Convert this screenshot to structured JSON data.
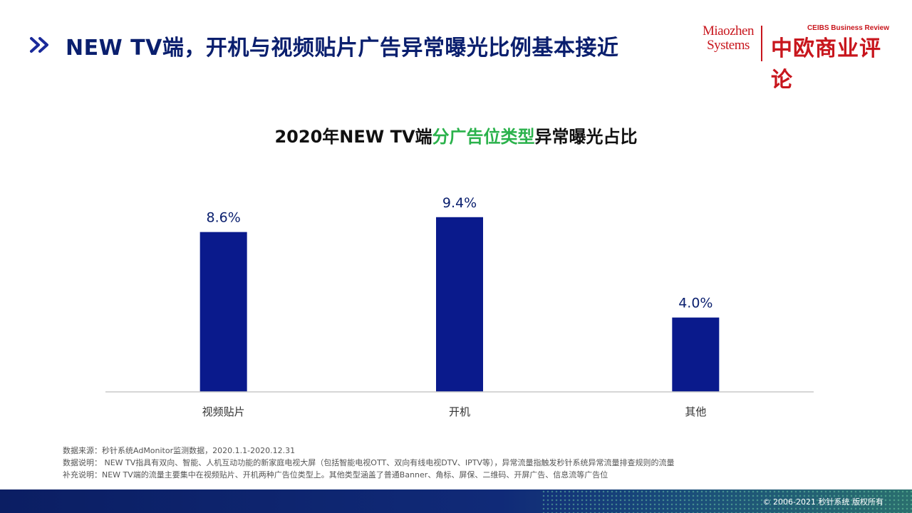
{
  "header": {
    "title": "NEW TV端，开机与视频贴片广告异常曝光比例基本接近"
  },
  "logos": {
    "miaozhen_line1": "Miaozhen",
    "miaozhen_line2": "Systems",
    "ceibs_en": "CEIBS Business Review",
    "ceibs_cn": "中欧商业评论"
  },
  "chart_title": {
    "prefix": "2020年NEW TV端",
    "highlight": "分广告位类型",
    "suffix": "异常曝光占比"
  },
  "colors": {
    "bar": "#0a1a8c",
    "highlight": "#2bb24c",
    "title": "#0a1f6e"
  },
  "chart_data": {
    "type": "bar",
    "title": "2020年NEW TV端分广告位类型异常曝光占比",
    "categories": [
      "视频贴片",
      "开机",
      "其他"
    ],
    "values": [
      8.6,
      9.4,
      4.0
    ],
    "value_labels": [
      "8.6%",
      "9.4%",
      "4.0%"
    ],
    "unit": "%",
    "ylim": [
      0,
      11.5
    ],
    "grid": false,
    "legend": "none"
  },
  "notes": [
    "数据来源：秒针系统AdMonitor监测数据，2020.1.1-2020.12.31",
    "数据说明： NEW TV指具有双向、智能、人机互动功能的新家庭电视大屏（包括智能电视OTT、双向有线电视DTV、IPTV等），异常流量指触发秒针系统异常流量排查规则的流量",
    "补充说明：NEW TV端的流量主要集中在视频贴片、开机两种广告位类型上。其他类型涵盖了普通Banner、角标、屏保、二维码、开屏广告、信息流等广告位"
  ],
  "footer": {
    "copyright": "© 2006-2021 秒针系统 版权所有"
  }
}
